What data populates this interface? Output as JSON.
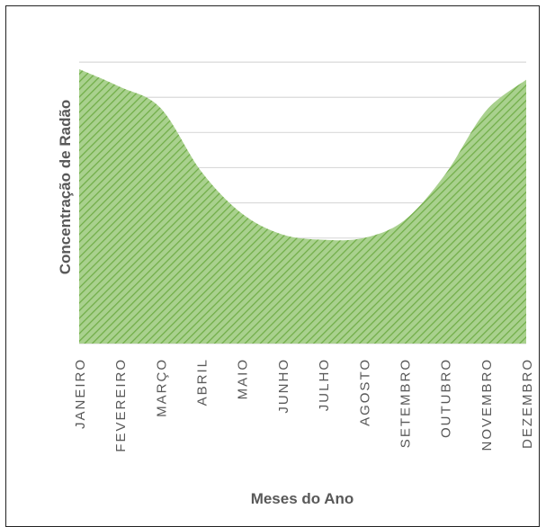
{
  "chart_data": {
    "type": "area",
    "title": "",
    "xlabel": "Meses do Ano",
    "ylabel": "Concentração de Radão",
    "categories": [
      "JANEIRO",
      "FEVEREIRO",
      "MARÇO",
      "ABRIL",
      "MAIO",
      "JUNHO",
      "JULHO",
      "AGOSTO",
      "SETEMBRO",
      "OUTUBRO",
      "NOVEMBRO",
      "DEZEMBRO"
    ],
    "series": [
      {
        "name": "",
        "values": [
          7.8,
          7.3,
          6.7,
          4.9,
          3.7,
          3.1,
          2.95,
          3.0,
          3.5,
          4.8,
          6.6,
          7.5
        ]
      }
    ],
    "ylim": [
      0,
      9
    ],
    "yticks": [
      0,
      1,
      2,
      3,
      4,
      5,
      6,
      7,
      8
    ],
    "grid": true,
    "fill_pattern": "diagonal-hatch",
    "colors": {
      "fill": "#a9d18e",
      "hatch": "#70ad47",
      "grid": "#d9d9d9",
      "text": "#595959"
    }
  }
}
